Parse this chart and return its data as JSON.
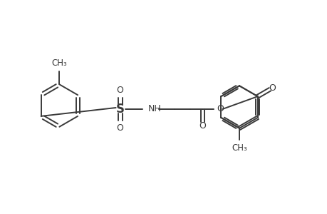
{
  "background_color": "#ffffff",
  "line_color": "#3a3a3a",
  "line_width": 1.4,
  "font_size": 9,
  "figsize": [
    4.6,
    3.0
  ],
  "dpi": 100,
  "xlim": [
    0,
    460
  ],
  "ylim": [
    0,
    300
  ]
}
